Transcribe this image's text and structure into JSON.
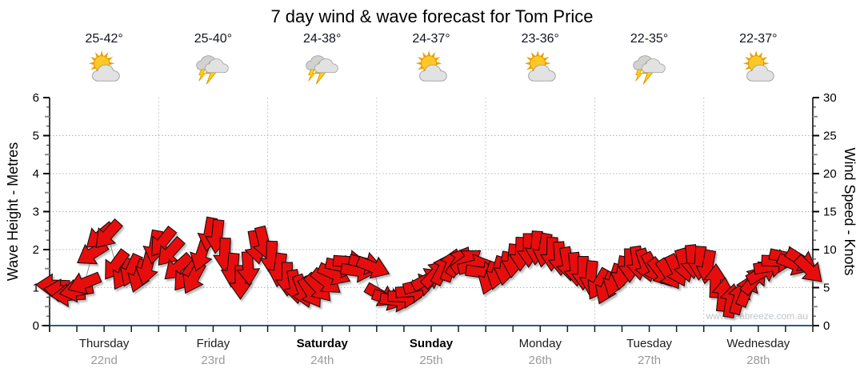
{
  "title": "7 day wind & wave forecast for Tom Price",
  "watermark": "www.seabreeze.com.au",
  "days": [
    {
      "name": "Thursday",
      "date": "22nd",
      "temp": "25-42°",
      "icon": "partly-cloudy",
      "weekend": false
    },
    {
      "name": "Friday",
      "date": "23rd",
      "temp": "25-40°",
      "icon": "thunderstorm",
      "weekend": false
    },
    {
      "name": "Saturday",
      "date": "24th",
      "temp": "24-38°",
      "icon": "thunderstorm",
      "weekend": true
    },
    {
      "name": "Sunday",
      "date": "25th",
      "temp": "24-37°",
      "icon": "partly-cloudy",
      "weekend": true
    },
    {
      "name": "Monday",
      "date": "26th",
      "temp": "23-36°",
      "icon": "partly-cloudy",
      "weekend": false
    },
    {
      "name": "Tuesday",
      "date": "27th",
      "temp": "22-35°",
      "icon": "thunderstorm",
      "weekend": false
    },
    {
      "name": "Wednesday",
      "date": "28th",
      "temp": "22-37°",
      "icon": "partly-cloudy",
      "weekend": false
    }
  ],
  "left_axis": {
    "label": "Wave Height - Metres",
    "min": 0,
    "max": 6,
    "ticks": [
      0,
      1,
      2,
      3,
      4,
      5,
      6
    ]
  },
  "right_axis": {
    "label": "Wind Speed - Knots",
    "min": 0,
    "max": 30,
    "ticks": [
      0,
      5,
      10,
      15,
      20,
      25,
      30
    ]
  },
  "colors": {
    "arrow": "#e8100e",
    "arrow_outline": "#181010",
    "wind_line": "#8f8f8f",
    "x_axis": "#2f5a7e",
    "axis_black": "#000000",
    "grid_dotted": "#b5b5b5",
    "day_line": "#c9c9c9",
    "date_text": "#999999",
    "watermark": "#c0c4c8",
    "sun": "#ffc825",
    "sun_ray": "#f09f00",
    "cloud": "#e2e2e2",
    "cloud_edge": "#9e9e9e",
    "bolt": "#ffd400",
    "bolt_edge": "#d99400"
  },
  "chart_data": {
    "type": "wind_arrows_timeseries",
    "title": "7 day wind & wave forecast for Tom Price",
    "x_categories": [
      "Thursday 22nd",
      "Friday 23rd",
      "Saturday 24th",
      "Sunday 25th",
      "Monday 26th",
      "Tuesday 27th",
      "Wednesday 28th"
    ],
    "y_left": {
      "label": "Wave Height - Metres",
      "range": [
        0,
        6
      ]
    },
    "y_right": {
      "label": "Wind Speed - Knots",
      "range": [
        0,
        30
      ]
    },
    "grid": {
      "horizontal_dotted_at_metres": [
        1,
        2,
        3,
        4,
        5
      ],
      "vertical_day_boundaries": true
    },
    "points_per_day": 14,
    "dir_note": "rot_deg screen rotation of arrow: 0=pointing right(E), 90=down(S), 180=left(W), 270=up(N)",
    "series": [
      {
        "day": "Thursday",
        "knots": [
          5.3,
          4.6,
          4.0,
          4.6,
          5.6,
          9.5,
          11.8,
          12.0,
          8.0,
          6.8,
          7.3,
          6.6,
          7.6,
          10.4
        ],
        "rot_deg": [
          182,
          186,
          176,
          170,
          158,
          148,
          140,
          132,
          126,
          120,
          114,
          110,
          104,
          100
        ]
      },
      {
        "day": "Friday",
        "knots": [
          11.0,
          9.7,
          7.7,
          6.5,
          6.3,
          9.4,
          12.1,
          11.8,
          9.4,
          7.4,
          5.8,
          7.6,
          10.4,
          10.9
        ],
        "rot_deg": [
          128,
          132,
          138,
          128,
          118,
          108,
          100,
          96,
          92,
          95,
          90,
          86,
          80,
          76
        ]
      },
      {
        "day": "Saturday",
        "knots": [
          9.0,
          7.4,
          6.2,
          5.2,
          4.6,
          4.4,
          5.0,
          5.8,
          6.8,
          7.8,
          8.4,
          7.2,
          8.2,
          7.7
        ],
        "rot_deg": [
          92,
          98,
          90,
          80,
          70,
          58,
          48,
          38,
          24,
          12,
          4,
          8,
          14,
          22
        ]
      },
      {
        "day": "Sunday",
        "knots": [
          4.0,
          3.5,
          3.3,
          3.8,
          4.5,
          5.3,
          6.1,
          6.8,
          7.4,
          7.9,
          8.4,
          8.5,
          7.9,
          7.0
        ],
        "rot_deg": [
          30,
          18,
          8,
          2,
          356,
          346,
          332,
          314,
          298,
          290,
          304,
          324,
          346,
          8
        ]
      },
      {
        "day": "Monday",
        "knots": [
          6.3,
          7.0,
          7.6,
          8.6,
          9.5,
          10.0,
          10.3,
          10.0,
          9.5,
          8.9,
          8.2,
          7.5,
          7.0,
          6.4
        ],
        "rot_deg": [
          110,
          106,
          100,
          96,
          92,
          90,
          94,
          100,
          92,
          86,
          80,
          84,
          90,
          96
        ]
      },
      {
        "day": "Tuesday",
        "knots": [
          5.5,
          5.0,
          6.0,
          7.0,
          8.0,
          8.3,
          8.0,
          7.6,
          7.0,
          6.8,
          7.3,
          8.0,
          8.5,
          8.3
        ],
        "rot_deg": [
          120,
          114,
          108,
          100,
          90,
          82,
          72,
          62,
          52,
          56,
          64,
          74,
          84,
          94
        ]
      },
      {
        "day": "Wednesday",
        "knots": [
          7.8,
          5.8,
          4.0,
          3.2,
          3.6,
          4.6,
          6.0,
          7.0,
          7.8,
          8.5,
          9.0,
          8.1,
          8.6,
          7.4
        ],
        "rot_deg": [
          100,
          272,
          276,
          280,
          286,
          292,
          310,
          330,
          350,
          2,
          12,
          22,
          32,
          44
        ]
      }
    ]
  }
}
